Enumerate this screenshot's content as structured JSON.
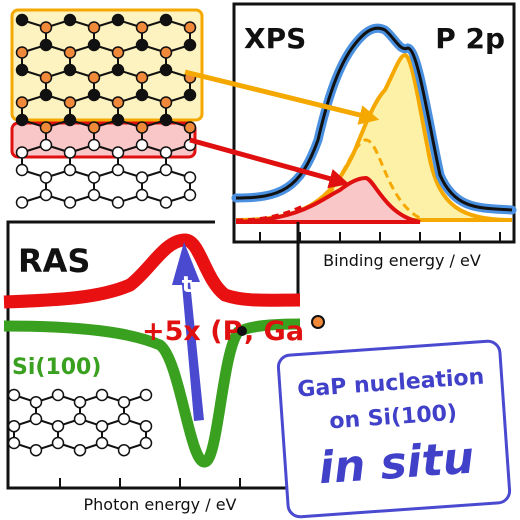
{
  "xps": {
    "title": "XPS",
    "line": "P 2p",
    "axis_label": "Binding energy / eV"
  },
  "ras": {
    "title": "RAS",
    "time_label": "t",
    "scale_label": "+5x (P",
    "ga_label": ", Ga",
    "substrate_label": "Si(100)",
    "axis_label": "Photon energy / eV"
  },
  "caption": {
    "line1": "GaP nucleation",
    "line2": "on Si(100)",
    "line3": "in situ"
  }
}
